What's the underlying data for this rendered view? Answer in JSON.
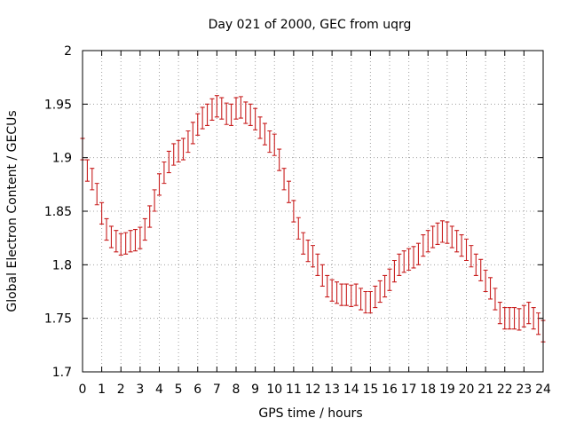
{
  "chart_data": {
    "type": "scatter",
    "title": "Day 021 of 2000, GEC from uqrg",
    "xlabel": "GPS time / hours",
    "ylabel": "Global Electron Content / GECUs",
    "xlim": [
      0,
      24
    ],
    "ylim": [
      1.7,
      2.0
    ],
    "grid": true,
    "x_ticks": [
      "0",
      "1",
      "2",
      "3",
      "4",
      "5",
      "6",
      "7",
      "8",
      "9",
      "10",
      "11",
      "12",
      "13",
      "14",
      "15",
      "16",
      "17",
      "18",
      "19",
      "20",
      "21",
      "22",
      "23",
      "24"
    ],
    "y_ticks": [
      "1.7",
      "1.75",
      "1.8",
      "1.85",
      "1.9",
      "1.95",
      "2"
    ],
    "series": [
      {
        "name": "GEC",
        "color": "#c81e1e",
        "error": 0.01,
        "x": [
          0.0,
          0.25,
          0.5,
          0.75,
          1.0,
          1.25,
          1.5,
          1.75,
          2.0,
          2.25,
          2.5,
          2.75,
          3.0,
          3.25,
          3.5,
          3.75,
          4.0,
          4.25,
          4.5,
          4.75,
          5.0,
          5.25,
          5.5,
          5.75,
          6.0,
          6.25,
          6.5,
          6.75,
          7.0,
          7.25,
          7.5,
          7.75,
          8.0,
          8.25,
          8.5,
          8.75,
          9.0,
          9.25,
          9.5,
          9.75,
          10.0,
          10.25,
          10.5,
          10.75,
          11.0,
          11.25,
          11.5,
          11.75,
          12.0,
          12.25,
          12.5,
          12.75,
          13.0,
          13.25,
          13.5,
          13.75,
          14.0,
          14.25,
          14.5,
          14.75,
          15.0,
          15.25,
          15.5,
          15.75,
          16.0,
          16.25,
          16.5,
          16.75,
          17.0,
          17.25,
          17.5,
          17.75,
          18.0,
          18.25,
          18.5,
          18.75,
          19.0,
          19.25,
          19.5,
          19.75,
          20.0,
          20.25,
          20.5,
          20.75,
          21.0,
          21.25,
          21.5,
          21.75,
          22.0,
          22.25,
          22.5,
          22.75,
          23.0,
          23.25,
          23.5,
          23.75,
          24.0
        ],
        "y": [
          1.908,
          1.888,
          1.88,
          1.866,
          1.848,
          1.833,
          1.826,
          1.822,
          1.819,
          1.82,
          1.822,
          1.823,
          1.825,
          1.833,
          1.845,
          1.86,
          1.875,
          1.886,
          1.896,
          1.903,
          1.906,
          1.908,
          1.915,
          1.923,
          1.931,
          1.937,
          1.94,
          1.945,
          1.948,
          1.946,
          1.941,
          1.94,
          1.946,
          1.947,
          1.942,
          1.94,
          1.936,
          1.928,
          1.922,
          1.915,
          1.912,
          1.898,
          1.88,
          1.868,
          1.85,
          1.834,
          1.82,
          1.813,
          1.808,
          1.8,
          1.79,
          1.78,
          1.776,
          1.774,
          1.772,
          1.772,
          1.771,
          1.772,
          1.768,
          1.765,
          1.765,
          1.77,
          1.775,
          1.78,
          1.786,
          1.794,
          1.8,
          1.803,
          1.805,
          1.807,
          1.81,
          1.818,
          1.822,
          1.826,
          1.829,
          1.831,
          1.83,
          1.826,
          1.822,
          1.818,
          1.814,
          1.808,
          1.8,
          1.795,
          1.785,
          1.778,
          1.768,
          1.755,
          1.75,
          1.75,
          1.75,
          1.749,
          1.752,
          1.755,
          1.75,
          1.745,
          1.738
        ]
      }
    ]
  }
}
